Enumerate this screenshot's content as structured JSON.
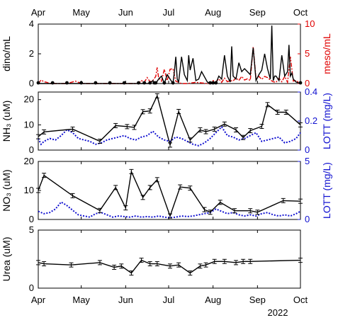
{
  "figure": {
    "months": [
      "Apr",
      "May",
      "Jun",
      "Jul",
      "Aug",
      "Sep",
      "Oct"
    ],
    "year_label": "2022",
    "colors": {
      "black": "#000000",
      "red": "#e00000",
      "blue": "#1010d0"
    }
  },
  "chart_data": [
    {
      "type": "line",
      "panel": "dino-meso",
      "ylabel": "dino/mL",
      "ylabel_right": "meso/mL",
      "ylim": [
        0,
        4
      ],
      "ylim_right": [
        0,
        10
      ],
      "yticks": [
        0,
        2,
        4
      ],
      "yticks_right": [
        0,
        5,
        10
      ],
      "xlim": [
        0,
        183
      ],
      "series": [
        {
          "name": "dino",
          "color": "#000000",
          "style": "solid",
          "x": [
            0,
            10,
            20,
            30,
            40,
            50,
            60,
            70,
            74,
            78,
            80,
            81,
            82,
            84,
            86,
            88,
            90,
            92,
            94,
            95,
            96,
            97,
            98,
            100,
            102,
            104,
            105,
            106,
            108,
            110,
            112,
            114,
            118,
            120,
            122,
            124,
            126,
            128,
            130,
            132,
            134,
            135,
            136,
            138,
            140,
            142,
            144,
            148,
            150,
            152,
            154,
            156,
            158,
            160,
            162,
            163,
            164,
            165,
            166,
            168,
            170,
            172,
            174,
            175,
            176,
            177,
            178,
            180,
            183
          ],
          "y": [
            0,
            0,
            0,
            0,
            0,
            0,
            0,
            0,
            0,
            0,
            0.2,
            0,
            0,
            0.3,
            0.5,
            0,
            0.6,
            0.3,
            0,
            0.8,
            1.8,
            0.3,
            0.1,
            1.8,
            0.6,
            0.2,
            1.9,
            0.9,
            1.7,
            0.2,
            0.3,
            0.8,
            0.1,
            0,
            0,
            0,
            0.5,
            0.3,
            1.9,
            0.5,
            0.1,
            2.5,
            0.5,
            0.3,
            1.4,
            0.8,
            1.0,
            0.6,
            2.4,
            0.2,
            0.6,
            0.9,
            2.0,
            1.0,
            0.3,
            3.9,
            0.2,
            0.5,
            0.5,
            0.2,
            1.9,
            0.5,
            0.8,
            2.6,
            0.5,
            0.7,
            0.3,
            0.1,
            0
          ]
        },
        {
          "name": "meso",
          "color": "#e00000",
          "style": "dashdot",
          "x": [
            0,
            2,
            4,
            6,
            8,
            10,
            20,
            26,
            28,
            30,
            40,
            50,
            60,
            70,
            72,
            74,
            76,
            78,
            80,
            82,
            83,
            84,
            86,
            88,
            90,
            92,
            94,
            96,
            98,
            100,
            104,
            110,
            118,
            120,
            122,
            124,
            126,
            128,
            130,
            132,
            134,
            136,
            138,
            140,
            142,
            144,
            146,
            148,
            150,
            152,
            154,
            156,
            158,
            160,
            162,
            164,
            166,
            168,
            170,
            172,
            174,
            176,
            178,
            180,
            183
          ],
          "y": [
            0,
            0.6,
            0.3,
            0.2,
            0,
            0,
            0,
            0.4,
            0.2,
            0,
            0,
            0,
            0,
            0,
            0.5,
            0.2,
            1.0,
            0.3,
            0.5,
            1.2,
            2.7,
            1.0,
            0.4,
            2.4,
            0.5,
            2.4,
            2.5,
            0.4,
            0.2,
            0,
            0,
            0.2,
            0,
            0,
            0.5,
            0.3,
            0.8,
            0.2,
            0.9,
            0.3,
            0.5,
            0.4,
            1.0,
            0.5,
            1.2,
            0.6,
            0.8,
            0.5,
            6.2,
            0.8,
            1.2,
            0.7,
            1.2,
            1.0,
            0.6,
            0.3,
            0.2,
            0.9,
            0.3,
            1.2,
            0.2,
            4.5,
            0.4,
            0.5,
            0
          ]
        }
      ]
    },
    {
      "type": "line",
      "panel": "nh3",
      "ylabel": "NH₃ (uM)",
      "ylabel_right": "LOTT (mg/L)",
      "ylim": [
        0,
        23
      ],
      "ylim_right": [
        0,
        0.4
      ],
      "yticks": [
        0,
        10,
        20
      ],
      "yticks_right": [
        0,
        0.2,
        0.4
      ],
      "series": [
        {
          "name": "NH3",
          "color": "#000000",
          "style": "solid-errorbar",
          "x": [
            0,
            4,
            24,
            43,
            54,
            62,
            67,
            73,
            78,
            83,
            92,
            98,
            106,
            113,
            117,
            123,
            130,
            138,
            143,
            148,
            156,
            160,
            167,
            173,
            183
          ],
          "y": [
            5.3,
            7.2,
            8.3,
            3.5,
            9.7,
            9.3,
            9.0,
            15.2,
            15.5,
            21.5,
            2.0,
            15.3,
            4.0,
            8.0,
            7.3,
            8.3,
            10.3,
            8.0,
            5.0,
            7.7,
            9.4,
            18.0,
            15.0,
            15.0,
            10.0
          ]
        },
        {
          "name": "LOTT",
          "color": "#1010d0",
          "style": "dotted",
          "x": [
            0,
            2,
            4,
            8,
            12,
            16,
            20,
            24,
            28,
            32,
            36,
            40,
            44,
            48,
            52,
            56,
            60,
            64,
            68,
            72,
            76,
            80,
            84,
            88,
            92,
            96,
            100,
            104,
            108,
            112,
            116,
            120,
            124,
            128,
            132,
            136,
            140,
            144,
            148,
            152,
            156,
            160,
            164,
            168,
            172,
            176,
            180,
            183
          ],
          "y": [
            0.08,
            0.04,
            0.06,
            0.08,
            0.07,
            0.1,
            0.14,
            0.12,
            0.08,
            0.07,
            0.06,
            0.04,
            0.05,
            0.07,
            0.08,
            0.09,
            0.1,
            0.08,
            0.07,
            0.09,
            0.1,
            0.13,
            0.09,
            0.07,
            0.06,
            0.09,
            0.08,
            0.06,
            0.04,
            0.03,
            0.05,
            0.08,
            0.12,
            0.16,
            0.1,
            0.09,
            0.07,
            0.08,
            0.1,
            0.12,
            0.06,
            0.07,
            0.08,
            0.09,
            0.05,
            0.06,
            0.08,
            0.12
          ]
        }
      ]
    },
    {
      "type": "line",
      "panel": "no3",
      "ylabel": "NO₃ (uM)",
      "ylabel_right": "LOTT (mg/L)",
      "ylim": [
        0,
        20
      ],
      "ylim_right": [
        0,
        5
      ],
      "yticks": [
        0,
        10,
        20
      ],
      "yticks_right": [
        0,
        5
      ],
      "series": [
        {
          "name": "NO3",
          "color": "#000000",
          "style": "solid-errorbar",
          "x": [
            0,
            4,
            24,
            43,
            54,
            61,
            65,
            73,
            78,
            83,
            92,
            99,
            106,
            116,
            120,
            127,
            137,
            148,
            153,
            171,
            183
          ],
          "y": [
            10.0,
            15.2,
            8.2,
            3.1,
            11.0,
            4.0,
            16.5,
            7.6,
            11.0,
            13.7,
            1.2,
            11.2,
            10.8,
            3.4,
            2.5,
            5.9,
            3.0,
            3.0,
            2.5,
            6.5,
            6.3
          ]
        },
        {
          "name": "LOTT",
          "color": "#1010d0",
          "style": "dotted",
          "x": [
            0,
            4,
            8,
            12,
            16,
            20,
            24,
            28,
            32,
            36,
            40,
            44,
            48,
            52,
            56,
            60,
            64,
            68,
            72,
            76,
            80,
            84,
            88,
            92,
            96,
            100,
            104,
            108,
            112,
            116,
            120,
            124,
            128,
            132,
            136,
            140,
            144,
            148,
            152,
            156,
            160,
            164,
            168,
            172,
            176,
            180,
            183
          ],
          "y": [
            0.7,
            0.5,
            0.6,
            0.9,
            1.5,
            1.2,
            0.8,
            0.4,
            0.3,
            0.2,
            0.5,
            0.6,
            0.4,
            0.2,
            0.3,
            0.25,
            0.2,
            0.3,
            0.2,
            0.25,
            0.2,
            0.3,
            0.2,
            0.15,
            0.2,
            0.3,
            0.25,
            0.3,
            0.4,
            0.5,
            0.6,
            0.9,
            0.7,
            0.5,
            0.6,
            0.4,
            0.3,
            0.4,
            0.3,
            0.5,
            0.6,
            0.4,
            0.3,
            0.4,
            0.3,
            0.5,
            0.7
          ]
        }
      ]
    },
    {
      "type": "line",
      "panel": "urea",
      "ylabel": "Urea (uM)",
      "ylim": [
        0,
        5
      ],
      "yticks": [
        0,
        5
      ],
      "series": [
        {
          "name": "Urea",
          "color": "#000000",
          "style": "solid-errorbar",
          "x": [
            0,
            4,
            23,
            43,
            53,
            58,
            65,
            72,
            78,
            83,
            92,
            98,
            106,
            113,
            117,
            123,
            130,
            138,
            143,
            148,
            183
          ],
          "y": [
            2.2,
            2.1,
            2.0,
            2.2,
            1.8,
            1.9,
            1.3,
            2.4,
            2.1,
            2.1,
            1.9,
            2.0,
            1.3,
            1.9,
            2.0,
            2.3,
            2.3,
            2.2,
            2.3,
            2.3,
            2.4
          ]
        }
      ]
    }
  ]
}
